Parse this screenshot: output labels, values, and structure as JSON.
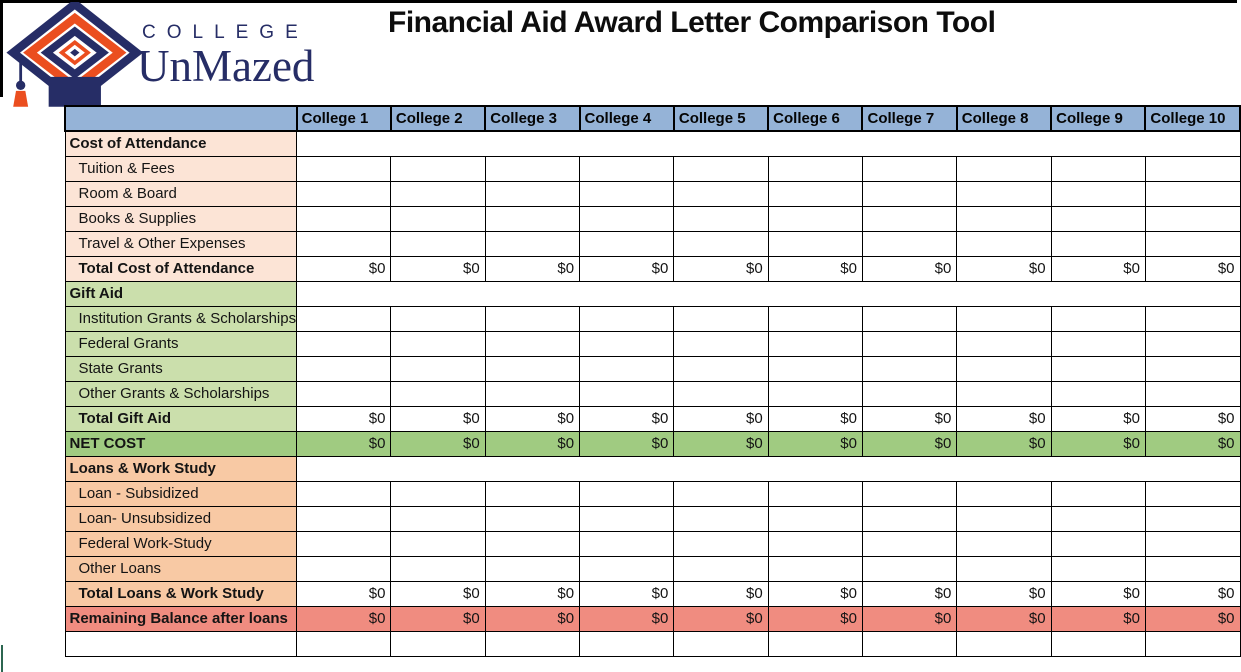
{
  "brand": {
    "line1": "C O L L E G E",
    "line1_plain": "COLLEGE",
    "line2": "UnMazed"
  },
  "page": {
    "title": "Financial Aid Award Letter Comparison Tool"
  },
  "colors": {
    "header_blue": "#95B3D7",
    "peach": "#FCE4D6",
    "green": "#CBDFAC",
    "green_dark": "#A0CB81",
    "orange": "#F8C9A4",
    "red": "#F08C80",
    "logo_navy": "#262D66",
    "logo_orange": "#EB4E1F",
    "grid_border": "#000000"
  },
  "table": {
    "corner_label": "",
    "columns": [
      "College 1",
      "College 2",
      "College 3",
      "College 4",
      "College 5",
      "College 6",
      "College 7",
      "College 8",
      "College 9",
      "College 10"
    ],
    "rows": [
      {
        "label": "Cost of Attendance",
        "kind": "section",
        "theme": "peach"
      },
      {
        "label": "Tuition & Fees",
        "kind": "input",
        "theme": "peach"
      },
      {
        "label": "Room & Board",
        "kind": "input",
        "theme": "peach"
      },
      {
        "label": "Books & Supplies",
        "kind": "input",
        "theme": "peach"
      },
      {
        "label": "Travel & Other Expenses",
        "kind": "input",
        "theme": "peach"
      },
      {
        "label": "Total Cost of Attendance",
        "kind": "total",
        "theme": "peach",
        "values": [
          "$0",
          "$0",
          "$0",
          "$0",
          "$0",
          "$0",
          "$0",
          "$0",
          "$0",
          "$0"
        ]
      },
      {
        "label": "Gift Aid",
        "kind": "section",
        "theme": "green"
      },
      {
        "label": "Institution Grants & Scholarships",
        "kind": "input",
        "theme": "green"
      },
      {
        "label": "Federal Grants",
        "kind": "input",
        "theme": "green"
      },
      {
        "label": "State Grants",
        "kind": "input",
        "theme": "green"
      },
      {
        "label": "Other Grants & Scholarships",
        "kind": "input",
        "theme": "green"
      },
      {
        "label": "Total Gift Aid",
        "kind": "total",
        "theme": "green",
        "values": [
          "$0",
          "$0",
          "$0",
          "$0",
          "$0",
          "$0",
          "$0",
          "$0",
          "$0",
          "$0"
        ]
      },
      {
        "label": "NET COST",
        "kind": "band",
        "theme": "green_dark",
        "values": [
          "$0",
          "$0",
          "$0",
          "$0",
          "$0",
          "$0",
          "$0",
          "$0",
          "$0",
          "$0"
        ]
      },
      {
        "label": "Loans & Work Study",
        "kind": "section",
        "theme": "orange"
      },
      {
        "label": "Loan - Subsidized",
        "kind": "input",
        "theme": "orange"
      },
      {
        "label": "Loan- Unsubsidized",
        "kind": "input",
        "theme": "orange"
      },
      {
        "label": "Federal Work-Study",
        "kind": "input",
        "theme": "orange"
      },
      {
        "label": "Other Loans",
        "kind": "input",
        "theme": "orange"
      },
      {
        "label": "Total Loans & Work Study",
        "kind": "total",
        "theme": "orange",
        "values": [
          "$0",
          "$0",
          "$0",
          "$0",
          "$0",
          "$0",
          "$0",
          "$0",
          "$0",
          "$0"
        ]
      },
      {
        "label": "Remaining Balance after loans",
        "kind": "band",
        "theme": "red",
        "values": [
          "$0",
          "$0",
          "$0",
          "$0",
          "$0",
          "$0",
          "$0",
          "$0",
          "$0",
          "$0"
        ]
      },
      {
        "label": "",
        "kind": "empty",
        "theme": ""
      }
    ]
  }
}
